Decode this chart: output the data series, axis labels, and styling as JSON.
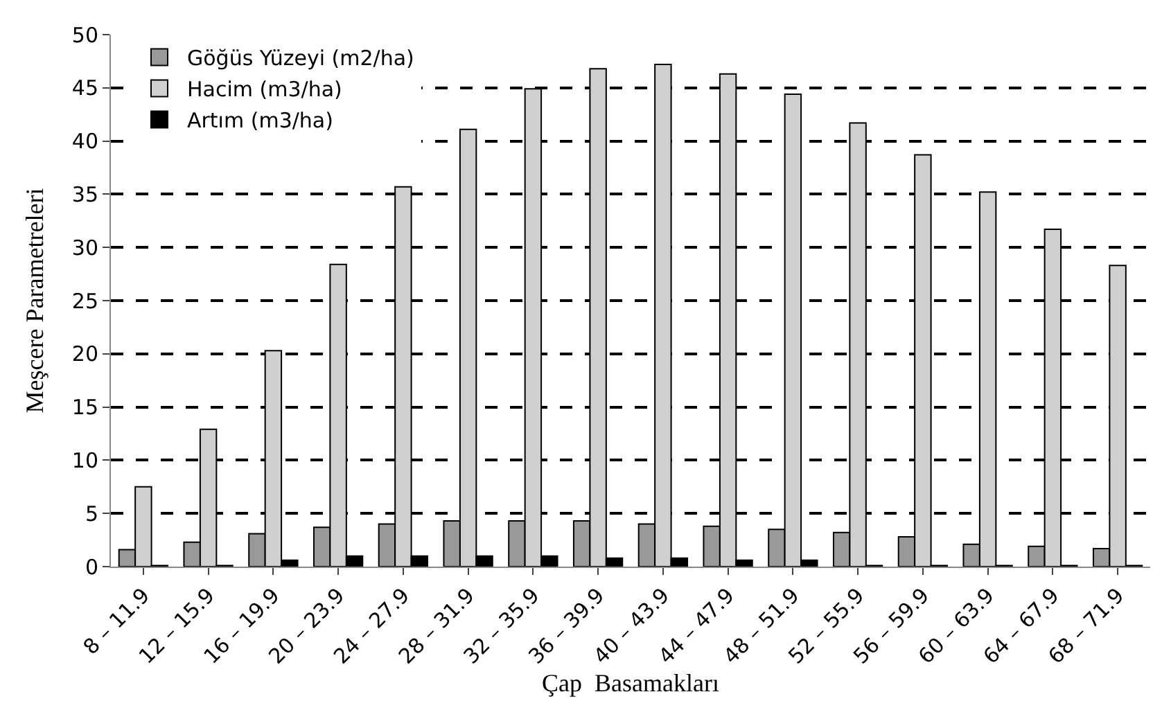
{
  "chart_data": {
    "type": "bar",
    "xlabel": "Çap  Basamakları",
    "ylabel": "Meşcere Parametreleri",
    "categories": [
      "8 – 11.9",
      "12 – 15.9",
      "16 – 19.9",
      "20 – 23.9",
      "24 – 27.9",
      "28 – 31.9",
      "32 – 35.9",
      "36 – 39.9",
      "40 – 43.9",
      "44 – 47.9",
      "48 – 51.9",
      "52 – 55.9",
      "56 – 59.9",
      "60 – 63.9",
      "64 – 67.9",
      "68 – 71.9"
    ],
    "series": [
      {
        "name": "Göğüs Yüzeyi (m2/ha)",
        "color": "#999999",
        "values": [
          1.6,
          2.3,
          3.1,
          3.7,
          4.0,
          4.3,
          4.3,
          4.3,
          4.0,
          3.8,
          3.5,
          3.2,
          2.8,
          2.1,
          1.9,
          1.7
        ]
      },
      {
        "name": "Hacim (m3/ha)",
        "color": "#d0d0d0",
        "values": [
          7.5,
          12.9,
          20.3,
          28.4,
          35.7,
          41.1,
          44.9,
          46.8,
          47.2,
          46.3,
          44.4,
          41.7,
          38.7,
          35.2,
          31.7,
          28.3
        ]
      },
      {
        "name": "Artım (m3/ha)",
        "color": "#000000",
        "values": [
          0.1,
          0.1,
          0.6,
          1.0,
          1.0,
          1.0,
          1.0,
          0.8,
          0.8,
          0.6,
          0.6,
          0.1,
          0.1,
          0.1,
          0.1,
          0.1
        ]
      }
    ],
    "ylim": [
      0,
      50
    ],
    "yticks": [
      0,
      5,
      10,
      15,
      20,
      25,
      30,
      35,
      40,
      45,
      50
    ],
    "grid": "y",
    "legend": "top left"
  }
}
